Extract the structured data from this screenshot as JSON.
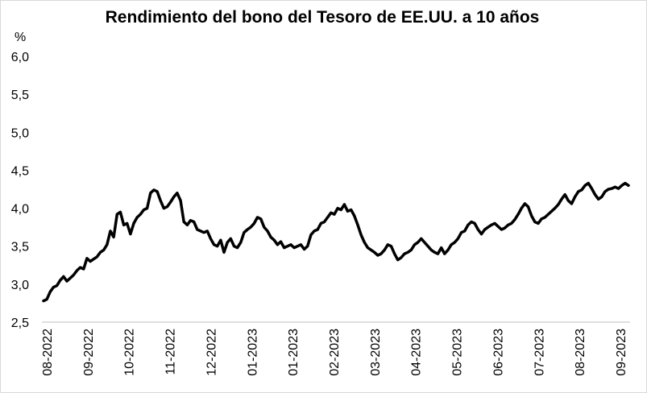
{
  "chart_data": {
    "type": "line",
    "title": "Rendimiento del bono del Tesoro de EE.UU. a 10 años",
    "ylabel": "%",
    "xlabel": "",
    "ylim": [
      2.5,
      6.0
    ],
    "y_ticks": [
      "2,5",
      "3,0",
      "3,5",
      "4,0",
      "4,5",
      "5,0",
      "5,5",
      "6,0"
    ],
    "y_tick_values": [
      2.5,
      3.0,
      3.5,
      4.0,
      4.5,
      5.0,
      5.5,
      6.0
    ],
    "x_ticks": [
      "08-2022",
      "09-2022",
      "10-2022",
      "11-2022",
      "12-2022",
      "01-2023",
      "01-2023",
      "02-2023",
      "03-2023",
      "04-2023",
      "05-2023",
      "06-2023",
      "07-2023",
      "08-2023",
      "09-2023"
    ],
    "grid": false,
    "legend": "none",
    "line_color": "#000000",
    "series": [
      {
        "values": [
          2.78,
          2.8,
          2.9,
          2.96,
          2.98,
          3.05,
          3.1,
          3.04,
          3.08,
          3.12,
          3.18,
          3.22,
          3.2,
          3.34,
          3.3,
          3.33,
          3.36,
          3.42,
          3.45,
          3.52,
          3.7,
          3.62,
          3.92,
          3.95,
          3.78,
          3.8,
          3.66,
          3.8,
          3.88,
          3.92,
          3.98,
          4.0,
          4.2,
          4.24,
          4.22,
          4.1,
          4.0,
          4.02,
          4.08,
          4.15,
          4.2,
          4.1,
          3.82,
          3.78,
          3.84,
          3.82,
          3.72,
          3.7,
          3.68,
          3.7,
          3.6,
          3.52,
          3.5,
          3.58,
          3.42,
          3.55,
          3.6,
          3.5,
          3.48,
          3.55,
          3.68,
          3.72,
          3.75,
          3.8,
          3.88,
          3.86,
          3.75,
          3.7,
          3.62,
          3.58,
          3.52,
          3.56,
          3.48,
          3.5,
          3.52,
          3.48,
          3.5,
          3.52,
          3.46,
          3.5,
          3.65,
          3.7,
          3.72,
          3.8,
          3.82,
          3.88,
          3.94,
          3.92,
          4.0,
          3.98,
          4.05,
          3.96,
          3.98,
          3.9,
          3.78,
          3.65,
          3.55,
          3.48,
          3.45,
          3.42,
          3.38,
          3.4,
          3.45,
          3.52,
          3.5,
          3.4,
          3.32,
          3.35,
          3.4,
          3.42,
          3.45,
          3.52,
          3.55,
          3.6,
          3.55,
          3.5,
          3.45,
          3.42,
          3.4,
          3.48,
          3.4,
          3.45,
          3.52,
          3.55,
          3.6,
          3.68,
          3.7,
          3.78,
          3.82,
          3.8,
          3.72,
          3.66,
          3.72,
          3.75,
          3.78,
          3.8,
          3.76,
          3.72,
          3.74,
          3.78,
          3.8,
          3.85,
          3.92,
          4.0,
          4.06,
          4.02,
          3.9,
          3.82,
          3.8,
          3.86,
          3.88,
          3.92,
          3.96,
          4.0,
          4.05,
          4.12,
          4.18,
          4.1,
          4.06,
          4.15,
          4.22,
          4.24,
          4.3,
          4.33,
          4.26,
          4.18,
          4.12,
          4.15,
          4.22,
          4.25,
          4.26,
          4.28,
          4.26,
          4.3,
          4.33,
          4.3
        ]
      }
    ]
  }
}
